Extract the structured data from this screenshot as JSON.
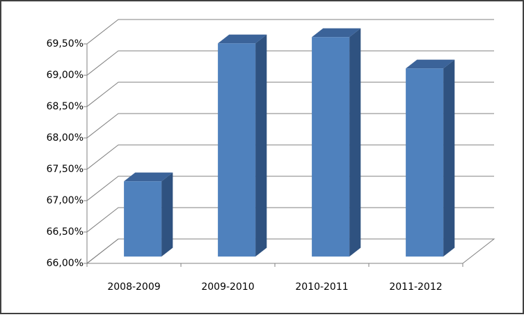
{
  "chart_data": {
    "type": "bar3d",
    "categories": [
      "2008-2009",
      "2009-2010",
      "2010-2011",
      "2011-2012"
    ],
    "values": [
      67.2,
      69.4,
      69.5,
      69.0
    ],
    "color": "#4f81bd",
    "ylim": [
      66,
      69.5
    ],
    "yticks": [
      {
        "value": 66,
        "label": "66,00%"
      },
      {
        "value": 66.5,
        "label": "66,50%"
      },
      {
        "value": 67,
        "label": "67,00%"
      },
      {
        "value": 67.5,
        "label": "67,50%"
      },
      {
        "value": 68,
        "label": "68,00%"
      },
      {
        "value": 68.5,
        "label": "68,50%"
      },
      {
        "value": 69,
        "label": "69,00%"
      },
      {
        "value": 69.5,
        "label": "69,50%"
      }
    ],
    "grid": true
  }
}
